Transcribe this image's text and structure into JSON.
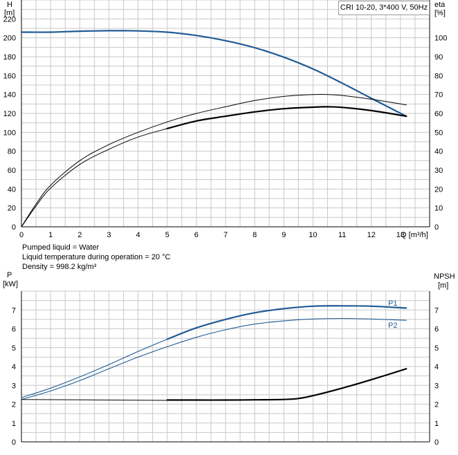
{
  "legend": "CRI 10-20, 3*400 V, 50Hz",
  "info": {
    "line1": "Pumped liquid = Water",
    "line2": "Liquid temperature during operation = 20 °C",
    "line3": "Density = 998.2 kg/m³"
  },
  "colors": {
    "blue": "#1f5a94",
    "black": "#000000",
    "grid": "#c8c8c8"
  },
  "chart_data": [
    {
      "type": "line",
      "x_axis_label": "Q [m³/h]",
      "xlim": [
        0,
        14
      ],
      "x_ticks": [
        "0",
        "1",
        "2",
        "3",
        "4",
        "5",
        "6",
        "7",
        "8",
        "9",
        "10",
        "11",
        "12",
        "13"
      ],
      "y_left_label": [
        "H",
        "[m]"
      ],
      "ylim_left": [
        0,
        240
      ],
      "y_left_ticks": [
        "0",
        "20",
        "40",
        "60",
        "80",
        "100",
        "120",
        "140",
        "160",
        "180",
        "200",
        "220"
      ],
      "y_right_label": [
        "eta",
        "[%]"
      ],
      "ylim_right": [
        0,
        120
      ],
      "y_right_ticks": [
        "0",
        "10",
        "20",
        "30",
        "40",
        "50",
        "60",
        "70",
        "80",
        "90",
        "100"
      ],
      "grid": true,
      "series": [
        {
          "axis": "left",
          "style": "blue-thick",
          "x": [
            0,
            1,
            2,
            3,
            3.5,
            4,
            5,
            6,
            7,
            8,
            9,
            10,
            11,
            12,
            13.2
          ],
          "y": [
            206,
            206,
            207,
            207.5,
            207.5,
            207.3,
            206,
            202.5,
            197,
            189.5,
            179.5,
            167,
            152,
            136,
            117
          ]
        },
        {
          "axis": "right",
          "style": "black-thin",
          "x": [
            0,
            0.5,
            1,
            2,
            3,
            4,
            5,
            6,
            7,
            8,
            9,
            10,
            10.5,
            11,
            12,
            13.2
          ],
          "y": [
            0,
            12,
            22,
            35,
            43.5,
            50,
            55.5,
            60,
            63.5,
            66.8,
            69,
            70,
            70,
            69.5,
            67.5,
            64.5
          ]
        },
        {
          "axis": "right",
          "style": "black-thin",
          "x": [
            0,
            0.5,
            1,
            2,
            3,
            4,
            5
          ],
          "y": [
            0,
            11,
            20.5,
            33,
            41,
            47.5,
            52
          ]
        },
        {
          "axis": "right",
          "style": "black-thick",
          "x": [
            5,
            6,
            7,
            8,
            9,
            10,
            10.5,
            11,
            12,
            13.2
          ],
          "y": [
            52,
            56,
            58.5,
            60.8,
            62.5,
            63.3,
            63.5,
            63.2,
            61.5,
            58.5
          ]
        }
      ]
    },
    {
      "type": "line",
      "xlim": [
        0,
        14
      ],
      "y_left_label": [
        "P",
        "[kW]"
      ],
      "ylim_left": [
        0,
        8
      ],
      "y_left_ticks": [
        "0",
        "1",
        "2",
        "3",
        "4",
        "5",
        "6",
        "7"
      ],
      "y_right_label": [
        "NPSH",
        "[m]"
      ],
      "ylim_right": [
        0,
        8
      ],
      "y_right_ticks": [
        "0",
        "1",
        "2",
        "3",
        "4",
        "5",
        "6",
        "7"
      ],
      "grid": true,
      "series": [
        {
          "name": "P1",
          "axis": "left",
          "style": "blue-thin",
          "x": [
            0,
            1,
            2,
            3,
            4,
            5
          ],
          "y": [
            2.35,
            2.85,
            3.45,
            4.1,
            4.8,
            5.45
          ]
        },
        {
          "name": "P1",
          "axis": "left",
          "style": "blue-thick",
          "x": [
            5,
            6,
            7,
            8,
            9,
            10,
            11,
            12,
            13.2
          ],
          "y": [
            5.45,
            6.05,
            6.5,
            6.85,
            7.07,
            7.2,
            7.22,
            7.2,
            7.1
          ]
        },
        {
          "name": "P2",
          "axis": "left",
          "style": "blue-thin",
          "x": [
            0,
            1,
            2,
            3,
            4,
            5,
            6,
            7,
            8,
            9,
            10,
            11,
            12,
            13.2
          ],
          "y": [
            2.25,
            2.7,
            3.25,
            3.88,
            4.5,
            5.05,
            5.55,
            5.95,
            6.25,
            6.42,
            6.52,
            6.55,
            6.52,
            6.45
          ]
        },
        {
          "axis": "right",
          "style": "black-thin",
          "x": [
            0,
            5
          ],
          "y": [
            2.25,
            2.2
          ]
        },
        {
          "axis": "right",
          "style": "black-thick",
          "x": [
            5,
            6,
            7,
            8,
            9,
            9.5,
            10,
            11,
            12,
            13.2
          ],
          "y": [
            2.22,
            2.22,
            2.22,
            2.23,
            2.25,
            2.3,
            2.45,
            2.85,
            3.3,
            3.88
          ]
        }
      ]
    }
  ]
}
